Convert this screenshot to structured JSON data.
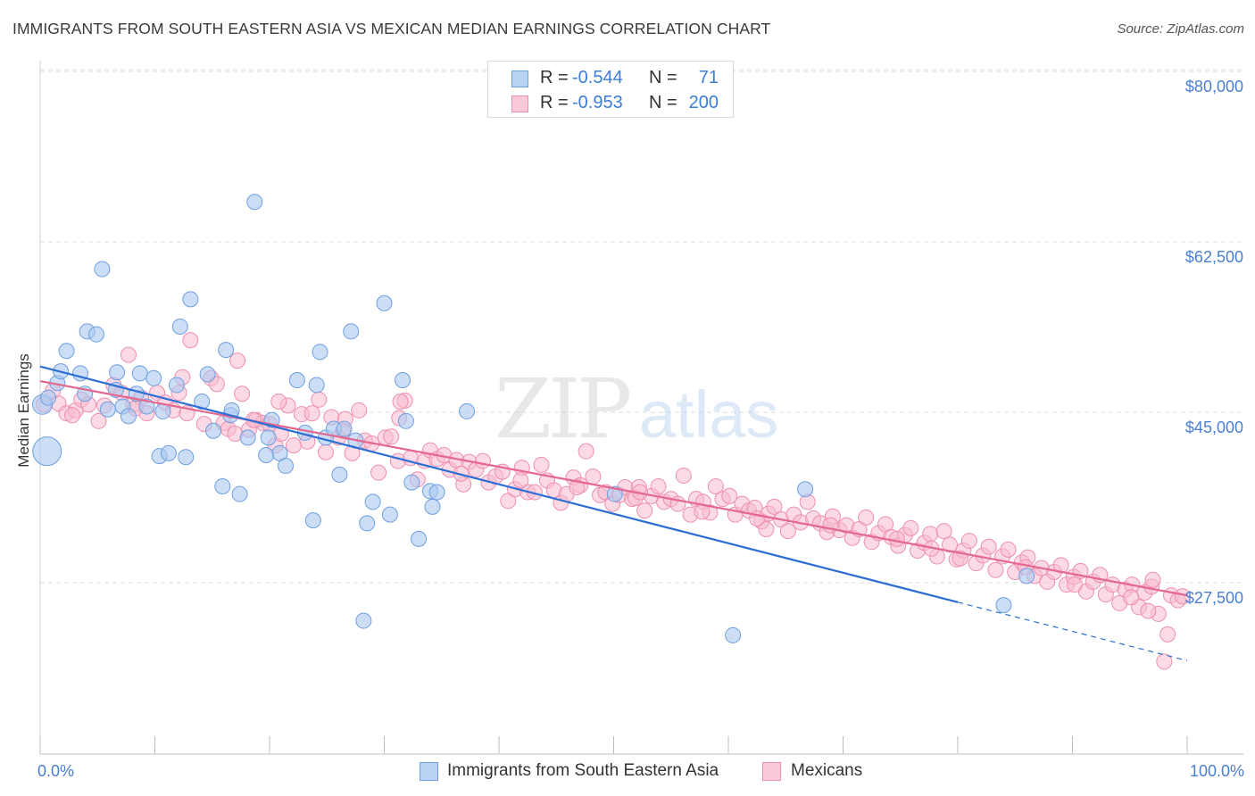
{
  "title": "IMMIGRANTS FROM SOUTH EASTERN ASIA VS MEXICAN MEDIAN EARNINGS CORRELATION CHART",
  "source": "Source: ZipAtlas.com",
  "watermark": {
    "zip": "ZIP",
    "atlas": "atlas"
  },
  "colors": {
    "blue_fill": "#a9c8f0",
    "blue_stroke": "#6f9fe0",
    "blue_line": "#2b6fd4",
    "pink_fill": "#f7bcd0",
    "pink_stroke": "#ee8fb0",
    "pink_line": "#e4678f",
    "axis_text": "#4a7fd0",
    "grid": "#dcdcdc"
  },
  "legend_top": [
    {
      "r_label": "R =",
      "r_value": "-0.544",
      "n_label": "N =",
      "n_value": "71"
    },
    {
      "r_label": "R =",
      "r_value": "-0.953",
      "n_label": "N =",
      "n_value": "200"
    }
  ],
  "legend_bottom": [
    "Immigrants from South Eastern Asia",
    "Mexicans"
  ],
  "chart_data": {
    "type": "scatter",
    "title": "IMMIGRANTS FROM SOUTH EASTERN ASIA VS MEXICAN MEDIAN EARNINGS CORRELATION CHART",
    "xlabel": "",
    "ylabel": "Median Earnings",
    "xlim": [
      0,
      100
    ],
    "ylim": [
      10000,
      85000
    ],
    "x_tick_labels": [
      "0.0%",
      "100.0%"
    ],
    "y_ticks": [
      27500,
      45000,
      62500,
      80000
    ],
    "y_tick_labels": [
      "$27,500",
      "$45,000",
      "$62,500",
      "$80,000"
    ],
    "grid": true,
    "legend_placement": "top-center",
    "series": [
      {
        "name": "Immigrants from South Eastern Asia",
        "trend": {
          "x0": 0,
          "y0": 49700,
          "x1": 80,
          "y1": 25500,
          "dashed_to_x": 100,
          "dashed_to_y": 19500
        },
        "points": [
          [
            0.2,
            45800
          ],
          [
            0.6,
            41000
          ],
          [
            0.7,
            46500
          ],
          [
            1.5,
            48000
          ],
          [
            1.8,
            49200
          ],
          [
            2.3,
            51300
          ],
          [
            3.5,
            49000
          ],
          [
            3.9,
            46900
          ],
          [
            4.1,
            53300
          ],
          [
            4.9,
            53000
          ],
          [
            5.4,
            59700
          ],
          [
            5.9,
            45300
          ],
          [
            6.6,
            47300
          ],
          [
            6.7,
            49100
          ],
          [
            7.2,
            45600
          ],
          [
            7.7,
            44600
          ],
          [
            8.4,
            46900
          ],
          [
            8.7,
            49000
          ],
          [
            9.3,
            45600
          ],
          [
            9.9,
            48500
          ],
          [
            10.4,
            40500
          ],
          [
            10.7,
            45100
          ],
          [
            11.2,
            40800
          ],
          [
            11.9,
            47800
          ],
          [
            12.2,
            53800
          ],
          [
            12.7,
            40400
          ],
          [
            13.1,
            56600
          ],
          [
            14.1,
            46100
          ],
          [
            14.6,
            48900
          ],
          [
            15.1,
            43100
          ],
          [
            15.9,
            37400
          ],
          [
            16.2,
            51400
          ],
          [
            16.6,
            44700
          ],
          [
            16.7,
            45200
          ],
          [
            17.4,
            36600
          ],
          [
            18.1,
            42400
          ],
          [
            18.7,
            66600
          ],
          [
            19.7,
            40600
          ],
          [
            19.9,
            42400
          ],
          [
            20.2,
            44200
          ],
          [
            20.9,
            40800
          ],
          [
            21.4,
            39500
          ],
          [
            22.4,
            48300
          ],
          [
            23.1,
            42900
          ],
          [
            23.8,
            33900
          ],
          [
            24.1,
            47800
          ],
          [
            24.4,
            51200
          ],
          [
            24.9,
            42400
          ],
          [
            25.6,
            43300
          ],
          [
            26.1,
            38600
          ],
          [
            26.5,
            43300
          ],
          [
            27.1,
            53300
          ],
          [
            27.5,
            42100
          ],
          [
            28.2,
            23600
          ],
          [
            28.5,
            33600
          ],
          [
            29.0,
            35800
          ],
          [
            30.0,
            56200
          ],
          [
            30.5,
            34500
          ],
          [
            31.6,
            48300
          ],
          [
            31.9,
            44100
          ],
          [
            32.4,
            37800
          ],
          [
            33.0,
            32000
          ],
          [
            34.0,
            36900
          ],
          [
            34.2,
            35300
          ],
          [
            34.6,
            36800
          ],
          [
            37.2,
            45100
          ],
          [
            50.1,
            36600
          ],
          [
            60.4,
            22100
          ],
          [
            66.7,
            37100
          ],
          [
            84.0,
            25200
          ],
          [
            86.0,
            28200
          ]
        ]
      },
      {
        "name": "Mexicans",
        "trend": {
          "x0": 0,
          "y0": 48200,
          "x1": 100,
          "y1": 26200
        },
        "points": [
          [
            0.3,
            45800
          ],
          [
            1.1,
            47200
          ],
          [
            1.6,
            45900
          ],
          [
            2.3,
            44900
          ],
          [
            3.1,
            45200
          ],
          [
            3.6,
            46300
          ],
          [
            4.2,
            45800
          ],
          [
            5.1,
            44100
          ],
          [
            5.6,
            45700
          ],
          [
            6.4,
            47800
          ],
          [
            7.1,
            47000
          ],
          [
            7.7,
            50900
          ],
          [
            8.1,
            45800
          ],
          [
            8.8,
            46500
          ],
          [
            9.3,
            44900
          ],
          [
            10.2,
            47000
          ],
          [
            10.9,
            46000
          ],
          [
            11.6,
            45200
          ],
          [
            12.1,
            47000
          ],
          [
            12.8,
            44900
          ],
          [
            13.1,
            52400
          ],
          [
            14.3,
            43800
          ],
          [
            14.9,
            48500
          ],
          [
            15.4,
            47900
          ],
          [
            16.0,
            43900
          ],
          [
            16.4,
            43300
          ],
          [
            17.2,
            50300
          ],
          [
            17.6,
            46900
          ],
          [
            18.2,
            43200
          ],
          [
            18.8,
            44200
          ],
          [
            19.4,
            43900
          ],
          [
            20.0,
            43800
          ],
          [
            20.5,
            41600
          ],
          [
            21.0,
            42800
          ],
          [
            21.6,
            45700
          ],
          [
            22.1,
            41600
          ],
          [
            22.8,
            44800
          ],
          [
            23.3,
            42000
          ],
          [
            23.7,
            44900
          ],
          [
            24.3,
            46300
          ],
          [
            24.9,
            40900
          ],
          [
            25.4,
            44500
          ],
          [
            26.0,
            42400
          ],
          [
            26.6,
            44300
          ],
          [
            27.2,
            40800
          ],
          [
            27.8,
            45200
          ],
          [
            28.3,
            42100
          ],
          [
            28.9,
            41800
          ],
          [
            29.5,
            38800
          ],
          [
            30.1,
            42400
          ],
          [
            30.6,
            42500
          ],
          [
            31.2,
            40000
          ],
          [
            31.8,
            46200
          ],
          [
            32.3,
            40300
          ],
          [
            32.9,
            38100
          ],
          [
            33.5,
            40000
          ],
          [
            34.0,
            41100
          ],
          [
            34.6,
            40200
          ],
          [
            35.2,
            40600
          ],
          [
            35.7,
            39100
          ],
          [
            36.3,
            40100
          ],
          [
            36.9,
            37600
          ],
          [
            37.4,
            39900
          ],
          [
            38.0,
            39100
          ],
          [
            38.6,
            40000
          ],
          [
            39.1,
            37800
          ],
          [
            39.7,
            38400
          ],
          [
            40.3,
            38900
          ],
          [
            40.8,
            35900
          ],
          [
            41.4,
            37100
          ],
          [
            42.0,
            39300
          ],
          [
            42.5,
            36800
          ],
          [
            43.1,
            36800
          ],
          [
            43.7,
            39600
          ],
          [
            44.2,
            38000
          ],
          [
            44.8,
            37000
          ],
          [
            45.4,
            35700
          ],
          [
            45.9,
            36600
          ],
          [
            46.5,
            38300
          ],
          [
            47.1,
            37500
          ],
          [
            47.6,
            41000
          ],
          [
            48.2,
            38400
          ],
          [
            48.8,
            36500
          ],
          [
            49.3,
            36800
          ],
          [
            49.9,
            35600
          ],
          [
            50.5,
            36500
          ],
          [
            51.0,
            37300
          ],
          [
            51.6,
            36100
          ],
          [
            52.2,
            37300
          ],
          [
            52.7,
            34900
          ],
          [
            53.3,
            36400
          ],
          [
            53.9,
            37400
          ],
          [
            54.4,
            35800
          ],
          [
            55.0,
            36100
          ],
          [
            55.6,
            35600
          ],
          [
            56.1,
            38500
          ],
          [
            56.7,
            34500
          ],
          [
            57.2,
            36100
          ],
          [
            57.8,
            35800
          ],
          [
            58.4,
            34700
          ],
          [
            58.9,
            37400
          ],
          [
            59.5,
            36100
          ],
          [
            60.1,
            36400
          ],
          [
            60.6,
            34500
          ],
          [
            61.2,
            35600
          ],
          [
            61.8,
            34900
          ],
          [
            62.3,
            35200
          ],
          [
            62.9,
            33800
          ],
          [
            63.5,
            34600
          ],
          [
            64.0,
            35300
          ],
          [
            64.6,
            34000
          ],
          [
            65.2,
            32800
          ],
          [
            65.7,
            34500
          ],
          [
            66.3,
            33700
          ],
          [
            66.9,
            35800
          ],
          [
            67.4,
            34100
          ],
          [
            68.0,
            33600
          ],
          [
            68.6,
            32700
          ],
          [
            69.1,
            34300
          ],
          [
            69.7,
            32900
          ],
          [
            70.3,
            33400
          ],
          [
            70.8,
            32100
          ],
          [
            71.4,
            33000
          ],
          [
            72.0,
            34200
          ],
          [
            72.5,
            31700
          ],
          [
            73.1,
            32600
          ],
          [
            73.7,
            33500
          ],
          [
            74.2,
            32200
          ],
          [
            74.8,
            31300
          ],
          [
            75.4,
            32400
          ],
          [
            75.9,
            33100
          ],
          [
            76.5,
            30800
          ],
          [
            77.1,
            31600
          ],
          [
            77.6,
            32500
          ],
          [
            78.2,
            30200
          ],
          [
            78.8,
            32800
          ],
          [
            79.3,
            31400
          ],
          [
            79.9,
            29900
          ],
          [
            80.5,
            30800
          ],
          [
            81.0,
            31800
          ],
          [
            81.6,
            29500
          ],
          [
            82.2,
            30300
          ],
          [
            82.7,
            31200
          ],
          [
            83.3,
            28800
          ],
          [
            83.9,
            30200
          ],
          [
            84.4,
            30900
          ],
          [
            85.0,
            28600
          ],
          [
            85.6,
            29600
          ],
          [
            86.1,
            30100
          ],
          [
            86.7,
            28200
          ],
          [
            87.3,
            29000
          ],
          [
            87.8,
            27600
          ],
          [
            88.4,
            28600
          ],
          [
            89.0,
            29300
          ],
          [
            89.5,
            27300
          ],
          [
            90.1,
            28100
          ],
          [
            90.7,
            28700
          ],
          [
            91.2,
            26600
          ],
          [
            91.8,
            27600
          ],
          [
            92.4,
            28300
          ],
          [
            92.9,
            26300
          ],
          [
            93.5,
            27300
          ],
          [
            94.1,
            25400
          ],
          [
            94.6,
            26800
          ],
          [
            95.2,
            27300
          ],
          [
            95.8,
            25000
          ],
          [
            96.3,
            26500
          ],
          [
            96.9,
            27100
          ],
          [
            97.5,
            24300
          ],
          [
            98.0,
            19400
          ],
          [
            98.6,
            26200
          ],
          [
            99.2,
            25700
          ],
          [
            99.6,
            26100
          ],
          [
            2.8,
            44700
          ],
          [
            8.3,
            45400
          ],
          [
            12.4,
            48600
          ],
          [
            18.6,
            44200
          ],
          [
            26.4,
            43100
          ],
          [
            31.3,
            44400
          ],
          [
            36.7,
            38700
          ],
          [
            41.9,
            38000
          ],
          [
            46.8,
            37300
          ],
          [
            51.9,
            36200
          ],
          [
            57.7,
            34800
          ],
          [
            63.3,
            33000
          ],
          [
            68.9,
            33400
          ],
          [
            74.7,
            32000
          ],
          [
            80.2,
            30000
          ],
          [
            85.9,
            29100
          ],
          [
            90.2,
            27300
          ],
          [
            95.1,
            26000
          ],
          [
            62.5,
            34100
          ],
          [
            52.3,
            36800
          ],
          [
            31.4,
            46100
          ],
          [
            17.0,
            42800
          ],
          [
            20.8,
            46100
          ],
          [
            77.7,
            31000
          ],
          [
            98.3,
            22200
          ],
          [
            97.0,
            27800
          ],
          [
            96.6,
            24600
          ]
        ]
      }
    ]
  }
}
